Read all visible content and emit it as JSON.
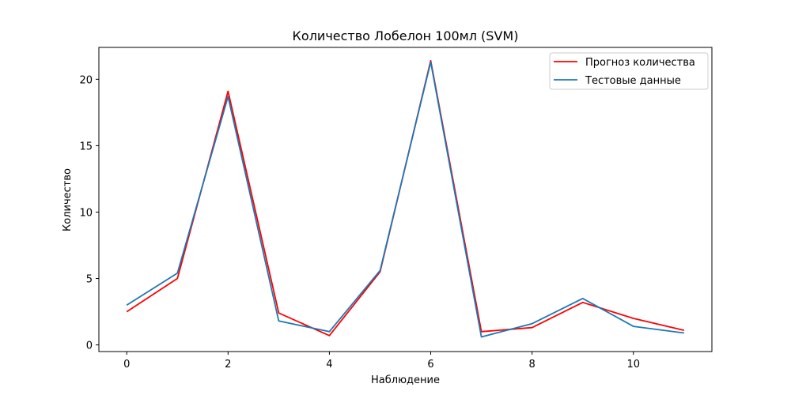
{
  "chart_data": {
    "type": "line",
    "title": "Количество Лобелон 100мл  (SVM)",
    "xlabel": "Наблюдение",
    "ylabel": "Количество",
    "x": [
      0,
      1,
      2,
      3,
      4,
      5,
      6,
      7,
      8,
      9,
      10,
      11
    ],
    "xlim": [
      -0.55,
      11.55
    ],
    "ylim": [
      -0.5,
      22.4
    ],
    "xticks": [
      0,
      2,
      4,
      6,
      8,
      10
    ],
    "yticks": [
      0,
      5,
      10,
      15,
      20
    ],
    "grid": false,
    "legend_position": "top-right",
    "series": [
      {
        "name": "Прогноз количества",
        "color": "#ff0000",
        "values": [
          2.5,
          5.0,
          19.1,
          2.4,
          0.7,
          5.5,
          21.4,
          1.0,
          1.3,
          3.2,
          2.0,
          1.1
        ]
      },
      {
        "name": "Тестовые данные",
        "color": "#1f77b4",
        "values": [
          3.0,
          5.4,
          18.7,
          1.8,
          1.0,
          5.6,
          21.3,
          0.6,
          1.6,
          3.5,
          1.4,
          0.9
        ]
      }
    ]
  }
}
